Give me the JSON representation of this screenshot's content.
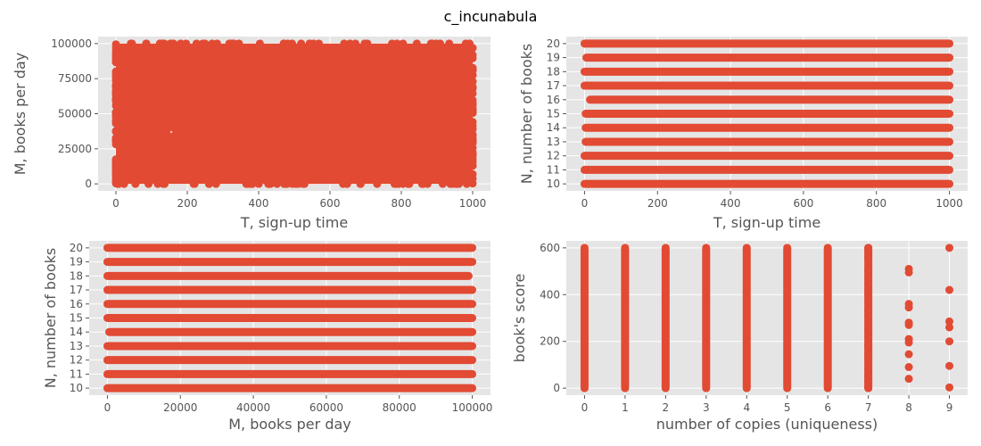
{
  "figure": {
    "suptitle": "c_incunabula"
  },
  "colors": {
    "marker": "#e24a33",
    "panel_bg": "#e5e5e5",
    "grid": "#ffffff",
    "tick_text": "#555555"
  },
  "chart_data": [
    {
      "type": "scatter",
      "title": "",
      "xlabel": "T, sign-up time",
      "ylabel": "M, books per day",
      "xlim": [
        0,
        1000
      ],
      "ylim": [
        0,
        100000
      ],
      "xticks": [
        0,
        200,
        400,
        600,
        800,
        1000
      ],
      "yticks": [
        0,
        25000,
        50000,
        75000,
        100000
      ],
      "grid": true,
      "distribution": "dense uniform cloud filling x 0-1000, y 0-100000"
    },
    {
      "type": "scatter",
      "title": "",
      "xlabel": "T, sign-up time",
      "ylabel": "N, number of books",
      "xlim": [
        0,
        1000
      ],
      "ylim": [
        10,
        20
      ],
      "xticks": [
        0,
        200,
        400,
        600,
        800,
        1000
      ],
      "yticks": [
        10,
        11,
        12,
        13,
        14,
        15,
        16,
        17,
        18,
        19,
        20
      ],
      "grid": true,
      "rows": [
        {
          "y": 10,
          "x_range": [
            0,
            1000
          ]
        },
        {
          "y": 11,
          "x_range": [
            0,
            1000
          ]
        },
        {
          "y": 12,
          "x_range": [
            0,
            1000
          ]
        },
        {
          "y": 13,
          "x_range": [
            3,
            1000
          ]
        },
        {
          "y": 14,
          "x_range": [
            3,
            1000
          ]
        },
        {
          "y": 15,
          "x_range": [
            3,
            1000
          ]
        },
        {
          "y": 16,
          "x_range": [
            15,
            1000
          ]
        },
        {
          "y": 17,
          "x_range": [
            0,
            1000
          ]
        },
        {
          "y": 18,
          "x_range": [
            0,
            1000
          ]
        },
        {
          "y": 19,
          "x_range": [
            5,
            1000
          ]
        },
        {
          "y": 20,
          "x_range": [
            0,
            1000
          ]
        }
      ]
    },
    {
      "type": "scatter",
      "title": "",
      "xlabel": "M, books per day",
      "ylabel": "N, number of books",
      "xlim": [
        0,
        100000
      ],
      "ylim": [
        10,
        20
      ],
      "xticks": [
        0,
        20000,
        40000,
        60000,
        80000,
        100000
      ],
      "yticks": [
        10,
        11,
        12,
        13,
        14,
        15,
        16,
        17,
        18,
        19,
        20
      ],
      "grid": true,
      "rows": [
        {
          "y": 10,
          "x_range": [
            0,
            100000
          ]
        },
        {
          "y": 11,
          "x_range": [
            0,
            100000
          ]
        },
        {
          "y": 12,
          "x_range": [
            0,
            100000
          ]
        },
        {
          "y": 13,
          "x_range": [
            0,
            100000
          ]
        },
        {
          "y": 14,
          "x_range": [
            500,
            100000
          ]
        },
        {
          "y": 15,
          "x_range": [
            0,
            100000
          ]
        },
        {
          "y": 16,
          "x_range": [
            0,
            100000
          ]
        },
        {
          "y": 17,
          "x_range": [
            0,
            100000
          ]
        },
        {
          "y": 18,
          "x_range": [
            0,
            99000
          ]
        },
        {
          "y": 19,
          "x_range": [
            0,
            100000
          ]
        },
        {
          "y": 20,
          "x_range": [
            0,
            100000
          ]
        }
      ]
    },
    {
      "type": "scatter",
      "title": "",
      "xlabel": "number of copies (uniqueness)",
      "ylabel": "book's score",
      "xlim": [
        0,
        9
      ],
      "ylim": [
        0,
        600
      ],
      "xticks": [
        0,
        1,
        2,
        3,
        4,
        5,
        6,
        7,
        8,
        9
      ],
      "yticks": [
        0,
        200,
        400,
        600
      ],
      "grid": true,
      "columns": [
        {
          "x": 0,
          "y_range": [
            0,
            600
          ],
          "points": []
        },
        {
          "x": 1,
          "y_range": [
            0,
            600
          ],
          "points": []
        },
        {
          "x": 2,
          "y_range": [
            0,
            600
          ],
          "points": []
        },
        {
          "x": 3,
          "y_range": [
            0,
            600
          ],
          "points": []
        },
        {
          "x": 4,
          "y_range": [
            0,
            600
          ],
          "points": []
        },
        {
          "x": 5,
          "y_range": [
            0,
            600
          ],
          "points": []
        },
        {
          "x": 6,
          "y_range": [
            0,
            600
          ],
          "points": []
        },
        {
          "x": 7,
          "y_range": [
            0,
            600
          ],
          "points": [
            600,
            590,
            560,
            500,
            470,
            445,
            420,
            400,
            370,
            330,
            310,
            280,
            250,
            220,
            185,
            175,
            150,
            135,
            110,
            80,
            50,
            30,
            10,
            0
          ]
        },
        {
          "x": 8,
          "y_range": null,
          "points": [
            510,
            495,
            360,
            345,
            280,
            270,
            210,
            195,
            145,
            90,
            40
          ]
        },
        {
          "x": 9,
          "y_range": null,
          "points": [
            600,
            420,
            285,
            260,
            200,
            95,
            3
          ]
        }
      ]
    }
  ]
}
